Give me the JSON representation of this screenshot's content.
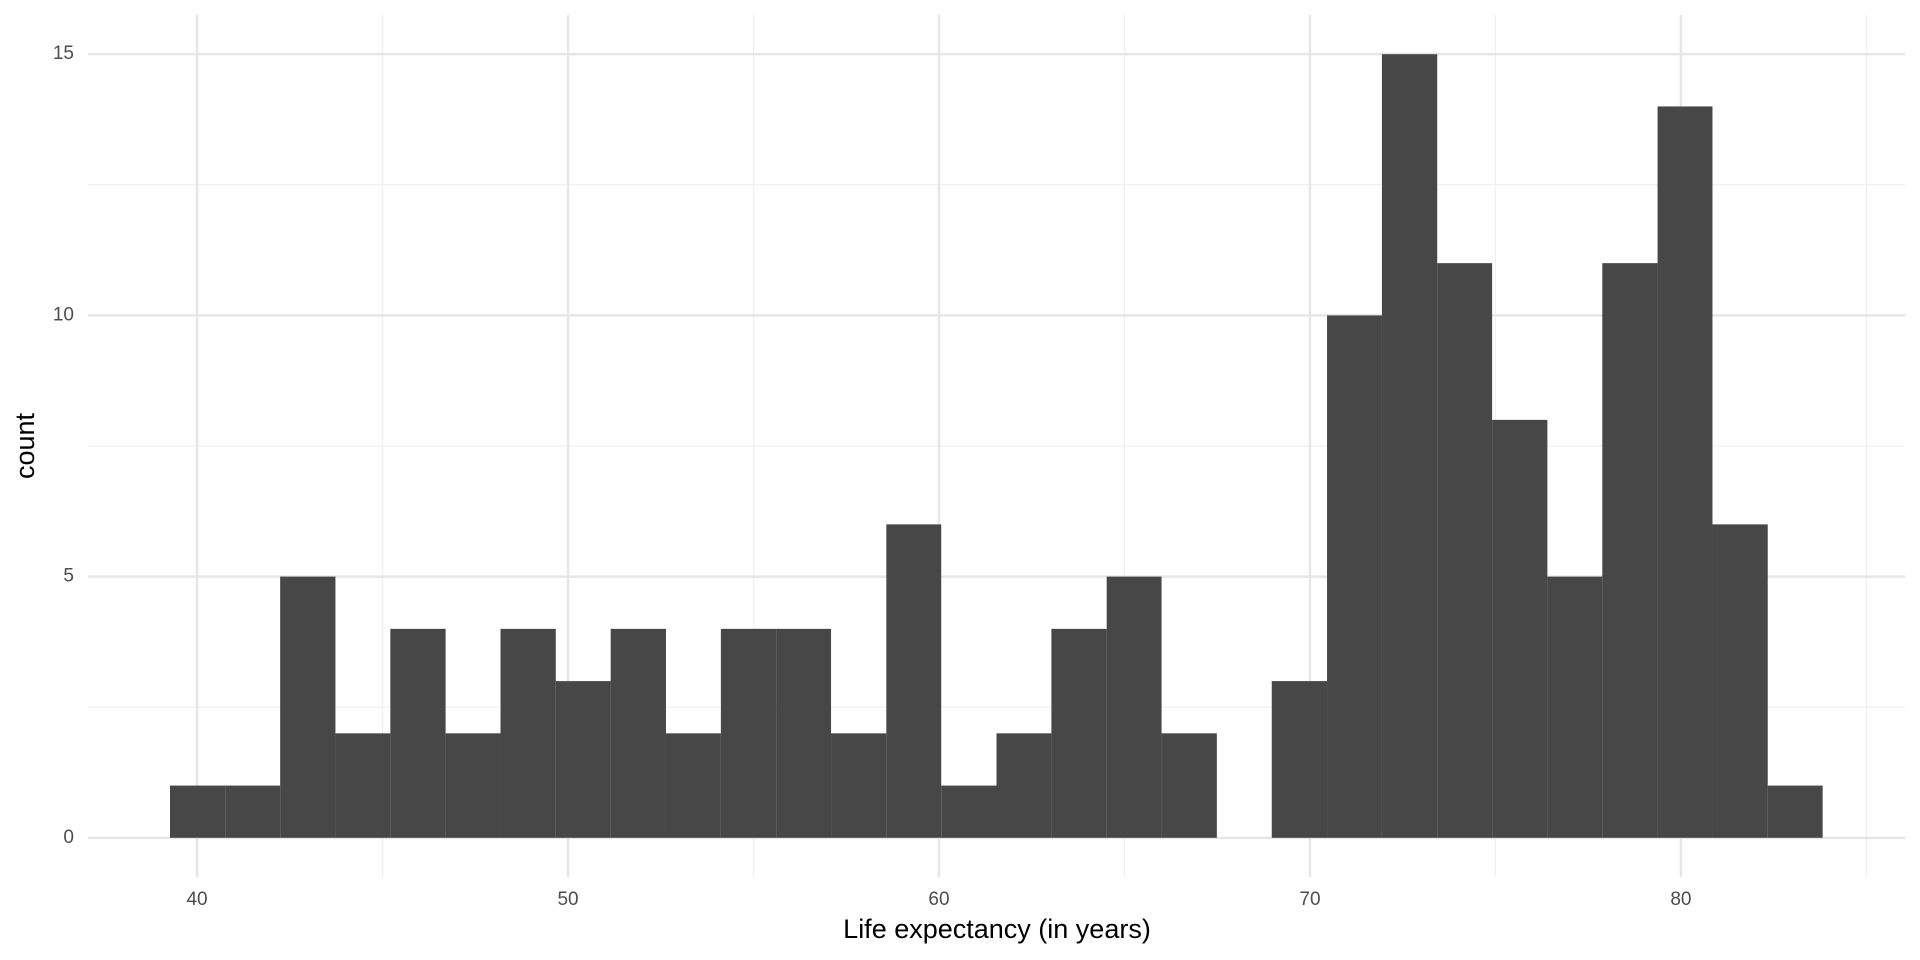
{
  "chart_data": {
    "type": "histogram",
    "x_label": "Life expectancy (in years)",
    "y_label": "count",
    "bins": [
      39.27,
      40.76,
      42.24,
      43.73,
      45.21,
      46.7,
      48.18,
      49.67,
      51.15,
      52.64,
      54.12,
      55.61,
      57.09,
      58.58,
      60.06,
      61.55,
      63.03,
      64.52,
      66.0,
      67.49,
      68.97,
      70.46,
      71.94,
      73.43,
      74.91,
      76.4,
      77.88,
      79.37,
      80.85,
      82.34,
      83.82
    ],
    "counts": [
      1,
      1,
      5,
      2,
      4,
      2,
      4,
      3,
      4,
      2,
      4,
      4,
      2,
      6,
      1,
      2,
      4,
      5,
      2,
      0,
      3,
      10,
      15,
      11,
      8,
      5,
      11,
      14,
      6,
      1
    ],
    "color": "#474747",
    "xlim": [
      37.06,
      86.04
    ],
    "ylim": [
      -0.75,
      15.75
    ],
    "xticks": [
      40,
      50,
      60,
      70,
      80
    ],
    "yticks": [
      0,
      5,
      10,
      15
    ],
    "x_minor_grid": [
      45,
      55,
      65,
      75,
      85
    ],
    "y_minor_grid": [
      2.5,
      7.5,
      12.5
    ],
    "grid": true
  }
}
